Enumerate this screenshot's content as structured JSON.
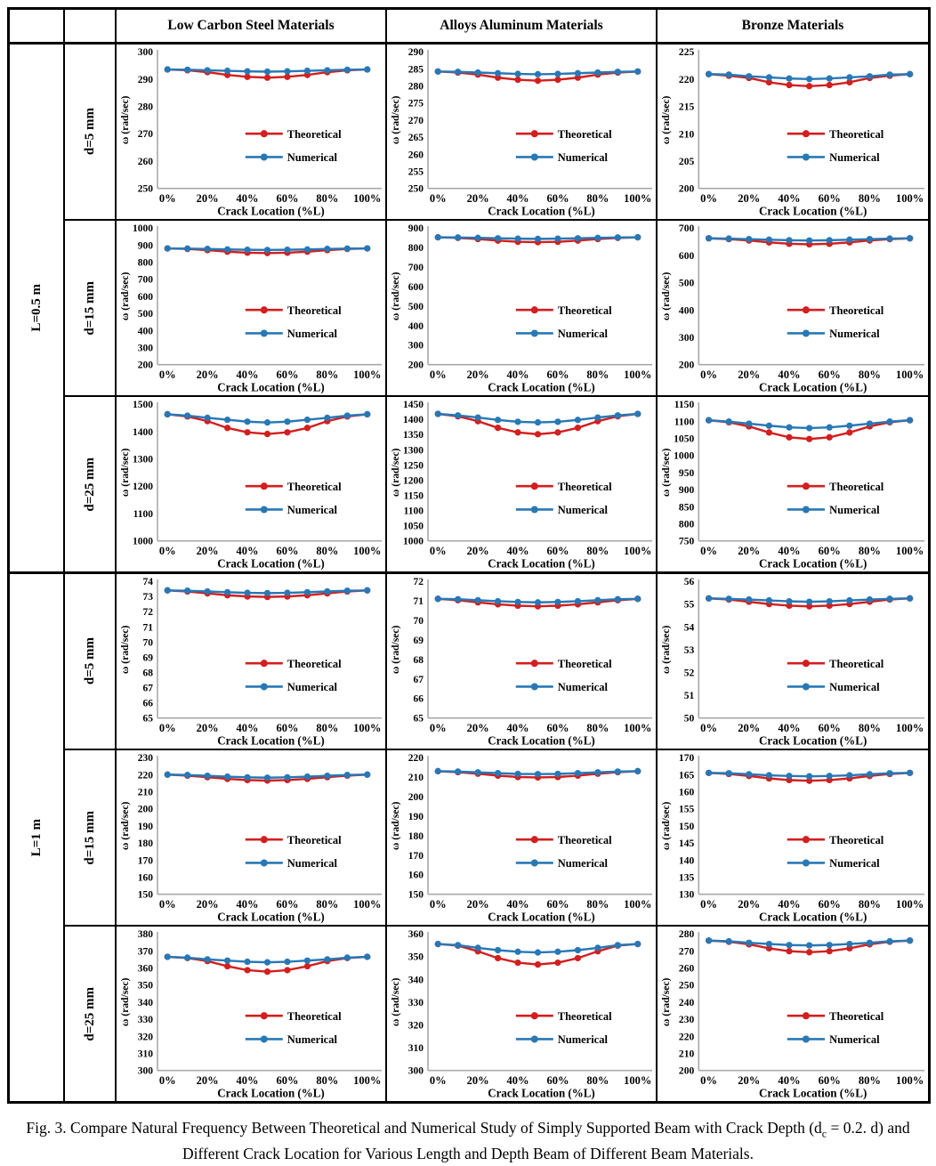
{
  "header": {
    "columns": [
      "Low Carbon Steel Materials",
      "Alloys Aluminum Materials",
      "Bronze Materials"
    ]
  },
  "row_groups": [
    {
      "length_label": "L=0.5 m",
      "depths": [
        "d=5 mm",
        "d=15 mm",
        "d=25 mm"
      ]
    },
    {
      "length_label": "L=1 m",
      "depths": [
        "d=5 mm",
        "d=15 mm",
        "d=25 mm"
      ]
    }
  ],
  "axis": {
    "x_label": "Crack Location (%L)",
    "y_label": "ω (rad/sec)",
    "x_ticks": [
      "0%",
      "20%",
      "40%",
      "60%",
      "80%",
      "100%"
    ]
  },
  "legend": {
    "entries": [
      "Theoretical",
      "Numerical"
    ]
  },
  "colors": {
    "theoretical": "#d21f1f",
    "numerical": "#2878b5",
    "axis": "#a8a8a8",
    "text": "#000000"
  },
  "caption": {
    "prefix": "Fig. 3. Compare Natural Frequency Between Theoretical and Numerical Study of Simply Supported Beam with Crack Depth (d",
    "sub": "c",
    "suffix": " = 0.2. d) and Different Crack Location for Various Length and Depth Beam of Different Beam Materials."
  },
  "chart_data": [
    {
      "type": "line",
      "material": "Low Carbon Steel",
      "length": "L=0.5 m",
      "depth": "d=5 mm",
      "x_percent": [
        0,
        10,
        20,
        30,
        40,
        50,
        60,
        70,
        80,
        90,
        100
      ],
      "ylim": [
        250,
        300
      ],
      "ystep": 10,
      "series": [
        {
          "name": "Theoretical",
          "values": [
            293.5,
            293.2,
            292.5,
            291.5,
            290.8,
            290.5,
            290.8,
            291.5,
            292.5,
            293.2,
            293.5
          ]
        },
        {
          "name": "Numerical",
          "values": [
            293.5,
            293.4,
            293.2,
            293.0,
            292.8,
            292.7,
            292.8,
            293.0,
            293.2,
            293.4,
            293.5
          ]
        }
      ]
    },
    {
      "type": "line",
      "material": "Alloys Aluminum",
      "length": "L=0.5 m",
      "depth": "d=5 mm",
      "x_percent": [
        0,
        10,
        20,
        30,
        40,
        50,
        60,
        70,
        80,
        90,
        100
      ],
      "ylim": [
        250,
        290
      ],
      "ystep": 5,
      "series": [
        {
          "name": "Theoretical",
          "values": [
            284.2,
            283.9,
            283.3,
            282.4,
            281.8,
            281.5,
            281.8,
            282.4,
            283.3,
            283.9,
            284.2
          ]
        },
        {
          "name": "Numerical",
          "values": [
            284.2,
            284.1,
            283.9,
            283.7,
            283.5,
            283.4,
            283.5,
            283.7,
            283.9,
            284.1,
            284.2
          ]
        }
      ]
    },
    {
      "type": "line",
      "material": "Bronze",
      "length": "L=0.5 m",
      "depth": "d=5 mm",
      "x_percent": [
        0,
        10,
        20,
        30,
        40,
        50,
        60,
        70,
        80,
        90,
        100
      ],
      "ylim": [
        200,
        225
      ],
      "ystep": 5,
      "series": [
        {
          "name": "Theoretical",
          "values": [
            220.9,
            220.6,
            220.2,
            219.4,
            218.9,
            218.7,
            218.9,
            219.4,
            220.2,
            220.6,
            220.9
          ]
        },
        {
          "name": "Numerical",
          "values": [
            220.9,
            220.8,
            220.5,
            220.3,
            220.1,
            220.0,
            220.1,
            220.3,
            220.5,
            220.8,
            220.9
          ]
        }
      ]
    },
    {
      "type": "line",
      "material": "Low Carbon Steel",
      "length": "L=0.5 m",
      "depth": "d=15 mm",
      "x_percent": [
        0,
        10,
        20,
        30,
        40,
        50,
        60,
        70,
        80,
        90,
        100
      ],
      "ylim": [
        200,
        1000
      ],
      "ystep": 100,
      "series": [
        {
          "name": "Theoretical",
          "values": [
            880,
            877,
            870,
            861,
            855,
            853,
            855,
            861,
            870,
            877,
            880
          ]
        },
        {
          "name": "Numerical",
          "values": [
            880,
            879,
            877,
            874,
            872,
            871,
            872,
            874,
            877,
            879,
            880
          ]
        }
      ]
    },
    {
      "type": "line",
      "material": "Alloys Aluminum",
      "length": "L=0.5 m",
      "depth": "d=15 mm",
      "x_percent": [
        0,
        10,
        20,
        30,
        40,
        50,
        60,
        70,
        80,
        90,
        100
      ],
      "ylim": [
        200,
        900
      ],
      "ystep": 100,
      "series": [
        {
          "name": "Theoretical",
          "values": [
            852,
            849,
            843,
            835,
            829,
            827,
            829,
            835,
            843,
            849,
            852
          ]
        },
        {
          "name": "Numerical",
          "values": [
            852,
            851,
            849,
            847,
            845,
            844,
            845,
            847,
            849,
            851,
            852
          ]
        }
      ]
    },
    {
      "type": "line",
      "material": "Bronze",
      "length": "L=0.5 m",
      "depth": "d=15 mm",
      "x_percent": [
        0,
        10,
        20,
        30,
        40,
        50,
        60,
        70,
        80,
        90,
        100
      ],
      "ylim": [
        200,
        700
      ],
      "ystep": 100,
      "series": [
        {
          "name": "Theoretical",
          "values": [
            662,
            659,
            654,
            647,
            642,
            640,
            642,
            647,
            654,
            659,
            662
          ]
        },
        {
          "name": "Numerical",
          "values": [
            662,
            661,
            659,
            657,
            655,
            654,
            655,
            657,
            659,
            661,
            662
          ]
        }
      ]
    },
    {
      "type": "line",
      "material": "Low Carbon Steel",
      "length": "L=0.5 m",
      "depth": "d=25 mm",
      "x_percent": [
        0,
        10,
        20,
        30,
        40,
        50,
        60,
        70,
        80,
        90,
        100
      ],
      "ylim": [
        1000,
        1500
      ],
      "ystep": 100,
      "series": [
        {
          "name": "Theoretical",
          "values": [
            1463,
            1455,
            1438,
            1413,
            1397,
            1391,
            1397,
            1413,
            1438,
            1455,
            1463
          ]
        },
        {
          "name": "Numerical",
          "values": [
            1463,
            1458,
            1450,
            1443,
            1436,
            1433,
            1436,
            1443,
            1450,
            1458,
            1463
          ]
        }
      ]
    },
    {
      "type": "line",
      "material": "Alloys Aluminum",
      "length": "L=0.5 m",
      "depth": "d=25 mm",
      "x_percent": [
        0,
        10,
        20,
        30,
        40,
        50,
        60,
        70,
        80,
        90,
        100
      ],
      "ylim": [
        1000,
        1450
      ],
      "ystep": 50,
      "series": [
        {
          "name": "Theoretical",
          "values": [
            1418,
            1410,
            1394,
            1372,
            1357,
            1351,
            1357,
            1372,
            1394,
            1410,
            1418
          ]
        },
        {
          "name": "Numerical",
          "values": [
            1418,
            1413,
            1406,
            1398,
            1392,
            1390,
            1392,
            1398,
            1406,
            1413,
            1418
          ]
        }
      ]
    },
    {
      "type": "line",
      "material": "Bronze",
      "length": "L=0.5 m",
      "depth": "d=25 mm",
      "x_percent": [
        0,
        10,
        20,
        30,
        40,
        50,
        60,
        70,
        80,
        90,
        100
      ],
      "ylim": [
        750,
        1150
      ],
      "ystep": 50,
      "series": [
        {
          "name": "Theoretical",
          "values": [
            1103,
            1097,
            1085,
            1067,
            1053,
            1048,
            1053,
            1067,
            1085,
            1097,
            1103
          ]
        },
        {
          "name": "Numerical",
          "values": [
            1103,
            1099,
            1093,
            1087,
            1082,
            1080,
            1082,
            1087,
            1093,
            1099,
            1103
          ]
        }
      ]
    },
    {
      "type": "line",
      "material": "Low Carbon Steel",
      "length": "L=1 m",
      "depth": "d=5 mm",
      "x_percent": [
        0,
        10,
        20,
        30,
        40,
        50,
        60,
        70,
        80,
        90,
        100
      ],
      "ylim": [
        65,
        74
      ],
      "ystep": 1,
      "series": [
        {
          "name": "Theoretical",
          "values": [
            73.4,
            73.33,
            73.2,
            73.08,
            73.0,
            72.97,
            73.0,
            73.08,
            73.2,
            73.33,
            73.4
          ]
        },
        {
          "name": "Numerical",
          "values": [
            73.4,
            73.38,
            73.33,
            73.28,
            73.24,
            73.22,
            73.24,
            73.28,
            73.33,
            73.38,
            73.4
          ]
        }
      ]
    },
    {
      "type": "line",
      "material": "Alloys Aluminum",
      "length": "L=1 m",
      "depth": "d=5 mm",
      "x_percent": [
        0,
        10,
        20,
        30,
        40,
        50,
        60,
        70,
        80,
        90,
        100
      ],
      "ylim": [
        65,
        72
      ],
      "ystep": 1,
      "series": [
        {
          "name": "Theoretical",
          "values": [
            71.1,
            71.03,
            70.92,
            70.82,
            70.75,
            70.72,
            70.75,
            70.82,
            70.92,
            71.03,
            71.1
          ]
        },
        {
          "name": "Numerical",
          "values": [
            71.1,
            71.08,
            71.03,
            70.98,
            70.94,
            70.92,
            70.94,
            70.98,
            71.03,
            71.08,
            71.1
          ]
        }
      ]
    },
    {
      "type": "line",
      "material": "Bronze",
      "length": "L=1 m",
      "depth": "d=5 mm",
      "x_percent": [
        0,
        10,
        20,
        30,
        40,
        50,
        60,
        70,
        80,
        90,
        100
      ],
      "ylim": [
        50,
        56
      ],
      "ystep": 1,
      "series": [
        {
          "name": "Theoretical",
          "values": [
            55.25,
            55.2,
            55.1,
            55.0,
            54.93,
            54.9,
            54.93,
            55.0,
            55.1,
            55.2,
            55.25
          ]
        },
        {
          "name": "Numerical",
          "values": [
            55.25,
            55.23,
            55.2,
            55.16,
            55.12,
            55.1,
            55.12,
            55.16,
            55.2,
            55.23,
            55.25
          ]
        }
      ]
    },
    {
      "type": "line",
      "material": "Low Carbon Steel",
      "length": "L=1 m",
      "depth": "d=15 mm",
      "x_percent": [
        0,
        10,
        20,
        30,
        40,
        50,
        60,
        70,
        80,
        90,
        100
      ],
      "ylim": [
        150,
        230
      ],
      "ystep": 10,
      "series": [
        {
          "name": "Theoretical",
          "values": [
            220,
            219.4,
            218.5,
            217.5,
            216.8,
            216.5,
            216.8,
            217.5,
            218.5,
            219.4,
            220
          ]
        },
        {
          "name": "Numerical",
          "values": [
            220,
            219.8,
            219.3,
            218.8,
            218.4,
            218.2,
            218.4,
            218.8,
            219.3,
            219.8,
            220
          ]
        }
      ]
    },
    {
      "type": "line",
      "material": "Alloys Aluminum",
      "length": "L=1 m",
      "depth": "d=15 mm",
      "x_percent": [
        0,
        10,
        20,
        30,
        40,
        50,
        60,
        70,
        80,
        90,
        100
      ],
      "ylim": [
        150,
        220
      ],
      "ystep": 10,
      "series": [
        {
          "name": "Theoretical",
          "values": [
            213,
            212.5,
            211.7,
            210.7,
            210.0,
            209.8,
            210.0,
            210.7,
            211.7,
            212.5,
            213
          ]
        },
        {
          "name": "Numerical",
          "values": [
            213,
            212.8,
            212.4,
            212.0,
            211.6,
            211.5,
            211.6,
            212.0,
            212.4,
            212.8,
            213
          ]
        }
      ]
    },
    {
      "type": "line",
      "material": "Bronze",
      "length": "L=1 m",
      "depth": "d=15 mm",
      "x_percent": [
        0,
        10,
        20,
        30,
        40,
        50,
        60,
        70,
        80,
        90,
        100
      ],
      "ylim": [
        130,
        170
      ],
      "ystep": 5,
      "series": [
        {
          "name": "Theoretical",
          "values": [
            165.5,
            165.2,
            164.6,
            163.9,
            163.4,
            163.2,
            163.4,
            163.9,
            164.6,
            165.2,
            165.5
          ]
        },
        {
          "name": "Numerical",
          "values": [
            165.5,
            165.4,
            165.1,
            164.8,
            164.6,
            164.5,
            164.6,
            164.8,
            165.1,
            165.4,
            165.5
          ]
        }
      ]
    },
    {
      "type": "line",
      "material": "Low Carbon Steel",
      "length": "L=1 m",
      "depth": "d=25 mm",
      "x_percent": [
        0,
        10,
        20,
        30,
        40,
        50,
        60,
        70,
        80,
        90,
        100
      ],
      "ylim": [
        300,
        380
      ],
      "ystep": 10,
      "series": [
        {
          "name": "Theoretical",
          "values": [
            366.5,
            365.8,
            364,
            361,
            358.7,
            357.8,
            358.7,
            361,
            364,
            365.8,
            366.5
          ]
        },
        {
          "name": "Numerical",
          "values": [
            366.5,
            366,
            365,
            364.3,
            363.6,
            363.3,
            363.6,
            364.3,
            365,
            366,
            366.5
          ]
        }
      ]
    },
    {
      "type": "line",
      "material": "Alloys Aluminum",
      "length": "L=1 m",
      "depth": "d=25 mm",
      "x_percent": [
        0,
        10,
        20,
        30,
        40,
        50,
        60,
        70,
        80,
        90,
        100
      ],
      "ylim": [
        300,
        360
      ],
      "ystep": 10,
      "series": [
        {
          "name": "Theoretical",
          "values": [
            355.5,
            354.8,
            352.3,
            349.3,
            347.3,
            346.5,
            347.3,
            349.3,
            352.3,
            354.8,
            355.5
          ]
        },
        {
          "name": "Numerical",
          "values": [
            355.5,
            355,
            353.8,
            352.8,
            352.1,
            351.8,
            352.1,
            352.8,
            353.8,
            355,
            355.5
          ]
        }
      ]
    },
    {
      "type": "line",
      "material": "Bronze",
      "length": "L=1 m",
      "depth": "d=25 mm",
      "x_percent": [
        0,
        10,
        20,
        30,
        40,
        50,
        60,
        70,
        80,
        90,
        100
      ],
      "ylim": [
        200,
        280
      ],
      "ystep": 10,
      "series": [
        {
          "name": "Theoretical",
          "values": [
            276,
            275.3,
            273.8,
            271.5,
            269.8,
            269.2,
            269.8,
            271.5,
            273.8,
            275.3,
            276
          ]
        },
        {
          "name": "Numerical",
          "values": [
            276,
            275.6,
            274.7,
            274.0,
            273.4,
            273.2,
            273.4,
            274.0,
            274.7,
            275.6,
            276
          ]
        }
      ]
    }
  ]
}
